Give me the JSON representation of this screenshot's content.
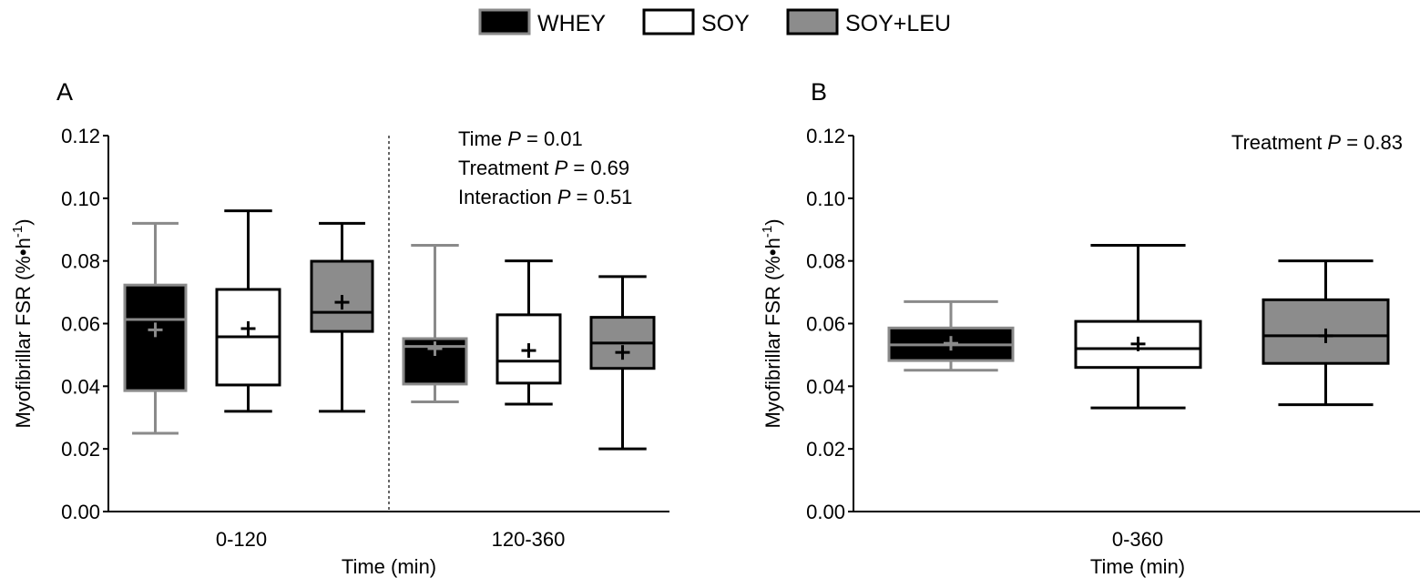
{
  "legend": {
    "placement": "top-center",
    "items": [
      {
        "label": "WHEY",
        "fill": "#000000",
        "stroke": "#8a8a8a"
      },
      {
        "label": "SOY",
        "fill": "#ffffff",
        "stroke": "#000000"
      },
      {
        "label": "SOY+LEU",
        "fill": "#8c8c8c",
        "stroke": "#000000"
      }
    ]
  },
  "chart_data": [
    {
      "type": "box",
      "panel_label": "A",
      "ylabel": "Myofibrillar FSR (%•h",
      "ylabel_sup": "-1",
      "ylabel_end": ")",
      "xlabel": "Time (min)",
      "ylim": [
        0,
        0.12
      ],
      "yticks": [
        "0.00",
        "0.02",
        "0.04",
        "0.06",
        "0.08",
        "0.10",
        "0.12"
      ],
      "grid": false,
      "annotations": [
        {
          "prefix": "Time ",
          "p": "P",
          "suffix": " = 0.01"
        },
        {
          "prefix": "Treatment ",
          "p": "P",
          "suffix": " = 0.69"
        },
        {
          "prefix": "Interaction ",
          "p": "P",
          "suffix": " = 0.51"
        }
      ],
      "categories": [
        "0-120",
        "120-360"
      ],
      "category_divider": "dashed",
      "series": [
        {
          "name": "WHEY",
          "boxes": [
            {
              "min": 0.025,
              "q1": 0.0386,
              "median": 0.0613,
              "q3": 0.0723,
              "max": 0.092,
              "mean": 0.058
            },
            {
              "min": 0.035,
              "q1": 0.0407,
              "median": 0.0527,
              "q3": 0.0552,
              "max": 0.085,
              "mean": 0.052
            }
          ]
        },
        {
          "name": "SOY",
          "boxes": [
            {
              "min": 0.032,
              "q1": 0.0404,
              "median": 0.0558,
              "q3": 0.0709,
              "max": 0.096,
              "mean": 0.0584
            },
            {
              "min": 0.0343,
              "q1": 0.041,
              "median": 0.048,
              "q3": 0.0628,
              "max": 0.08,
              "mean": 0.0514
            }
          ]
        },
        {
          "name": "SOY+LEU",
          "boxes": [
            {
              "min": 0.032,
              "q1": 0.0575,
              "median": 0.0636,
              "q3": 0.0799,
              "max": 0.092,
              "mean": 0.0668
            },
            {
              "min": 0.02,
              "q1": 0.0457,
              "median": 0.0538,
              "q3": 0.062,
              "max": 0.075,
              "mean": 0.0508
            }
          ]
        }
      ]
    },
    {
      "type": "box",
      "panel_label": "B",
      "ylabel": "Myofibrillar FSR (%•h",
      "ylabel_sup": "-1",
      "ylabel_end": ")",
      "xlabel": "Time (min)",
      "ylim": [
        0,
        0.12
      ],
      "yticks": [
        "0.00",
        "0.02",
        "0.04",
        "0.06",
        "0.08",
        "0.10",
        "0.12"
      ],
      "grid": false,
      "annotations": [
        {
          "prefix": "Treatment ",
          "p": "P",
          "suffix": " = 0.83"
        }
      ],
      "categories": [
        "0-360"
      ],
      "series": [
        {
          "name": "WHEY",
          "boxes": [
            {
              "min": 0.0451,
              "q1": 0.0482,
              "median": 0.0532,
              "q3": 0.0586,
              "max": 0.067,
              "mean": 0.0537
            }
          ]
        },
        {
          "name": "SOY",
          "boxes": [
            {
              "min": 0.0331,
              "q1": 0.046,
              "median": 0.052,
              "q3": 0.0607,
              "max": 0.085,
              "mean": 0.0535
            }
          ]
        },
        {
          "name": "SOY+LEU",
          "boxes": [
            {
              "min": 0.0341,
              "q1": 0.0473,
              "median": 0.0561,
              "q3": 0.0676,
              "max": 0.08,
              "mean": 0.0561
            }
          ]
        }
      ]
    }
  ]
}
